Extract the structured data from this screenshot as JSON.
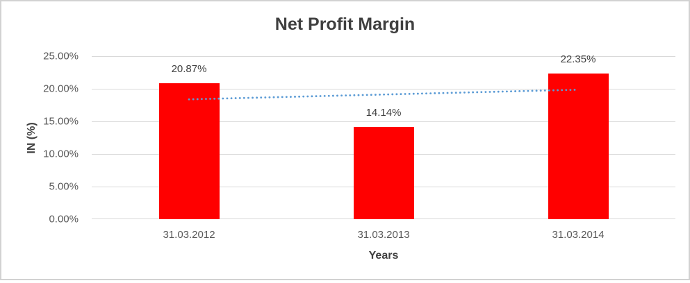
{
  "chart_data": {
    "type": "bar",
    "title": "Net Profit Margin",
    "xlabel": "Years",
    "ylabel": "IN (%)",
    "categories": [
      "31.03.2012",
      "31.03.2013",
      "31.03.2014"
    ],
    "values": [
      20.87,
      14.14,
      22.35
    ],
    "data_labels": [
      "20.87%",
      "14.14%",
      "22.35%"
    ],
    "ylim": [
      0,
      25
    ],
    "yticks": [
      {
        "value": 0,
        "label": "0.00%"
      },
      {
        "value": 5,
        "label": "5.00%"
      },
      {
        "value": 10,
        "label": "10.00%"
      },
      {
        "value": 15,
        "label": "15.00%"
      },
      {
        "value": 20,
        "label": "20.00%"
      },
      {
        "value": 25,
        "label": "25.00%"
      }
    ],
    "grid": true,
    "legend": false,
    "bar_color": "#FF0000",
    "gridline_color": "#D9D9D9",
    "title_color": "#3F3F3F",
    "tick_label_color": "#595959",
    "data_label_color": "#404040",
    "trendline": {
      "type": "linear",
      "style": "dotted",
      "color": "#5B9BD5",
      "endpoints_pct": [
        18.38,
        19.86
      ]
    }
  }
}
